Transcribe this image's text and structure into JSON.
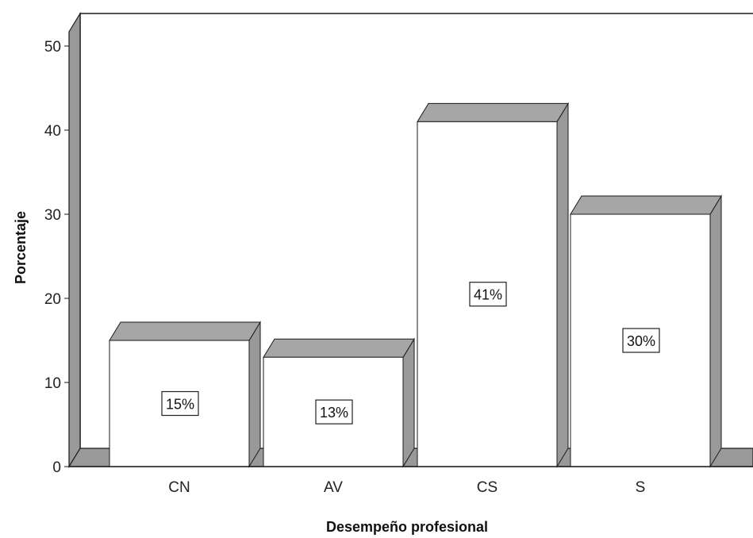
{
  "chart_data": {
    "type": "bar",
    "style": "3d",
    "categories": [
      "CN",
      "AV",
      "CS",
      "S"
    ],
    "values": [
      15,
      13,
      41,
      30
    ],
    "data_labels": [
      "15%",
      "13%",
      "41%",
      "30%"
    ],
    "xlabel": "Desempeño profesional",
    "ylabel": "Porcentaje",
    "ylim": [
      0,
      50
    ],
    "yticks": [
      0,
      10,
      20,
      30,
      40,
      50
    ],
    "grid": false,
    "legend": "none",
    "colors": {
      "bar_face": "#ffffff",
      "bar_side": "#999999",
      "bar_top": "#a6a6a6",
      "outline": "#1a1a1a"
    }
  }
}
